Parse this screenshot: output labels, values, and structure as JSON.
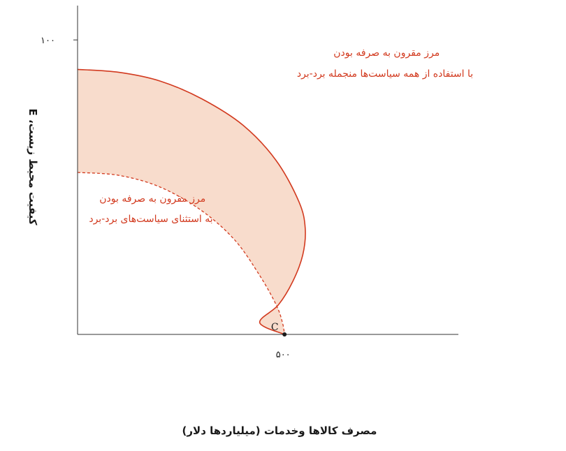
{
  "chart_data": {
    "type": "area",
    "xlabel": "مصرف کالاها وخدمات (میلیاردها دلار)",
    "ylabel": "کیفیت محیط زیست، E",
    "x_ticks": [
      {
        "value": 500,
        "label": "۵۰۰"
      }
    ],
    "y_ticks": [
      {
        "value": 100,
        "label": "۱۰۰"
      }
    ],
    "xlim": [
      0,
      920
    ],
    "ylim": [
      0,
      110
    ],
    "grid": false,
    "colors": {
      "frontier": "#d23a1f",
      "band_fill": "#f8dccc",
      "axis": "#333333",
      "point": "#1a1a1a"
    },
    "series": [
      {
        "style": "solid",
        "points": [
          [
            0,
            90
          ],
          [
            100,
            89
          ],
          [
            200,
            86
          ],
          [
            300,
            80
          ],
          [
            400,
            71
          ],
          [
            480,
            59
          ],
          [
            535,
            45
          ],
          [
            550,
            36
          ],
          [
            544,
            27
          ],
          [
            520,
            18
          ],
          [
            485,
            10
          ],
          [
            440,
            4
          ],
          [
            500,
            0
          ]
        ]
      },
      {
        "style": "dashed",
        "points": [
          [
            0,
            55
          ],
          [
            100,
            54
          ],
          [
            200,
            50
          ],
          [
            300,
            42
          ],
          [
            380,
            32
          ],
          [
            440,
            20
          ],
          [
            480,
            10
          ],
          [
            495,
            4
          ],
          [
            500,
            0
          ]
        ]
      }
    ],
    "annotations": [
      {
        "lines": [
          "مرز مقرون به صرفه بودن",
          "با استفاده از همه سیاست‌ها منجمله برد-برد"
        ]
      },
      {
        "lines": [
          "مرز مقرون به صرفه بودن",
          "به استثنای سیاست‌های برد-برد"
        ]
      }
    ],
    "points": [
      {
        "label": "C",
        "x": 500,
        "y": 0
      }
    ]
  }
}
